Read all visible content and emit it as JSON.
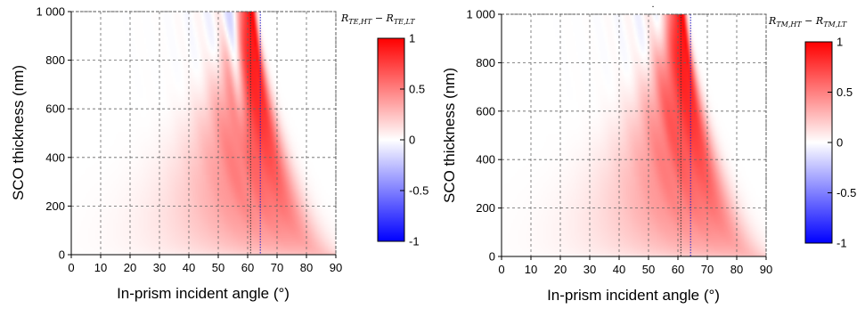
{
  "chart_data": [
    {
      "type": "heatmap",
      "xlabel": "In-prism incident angle (°)",
      "ylabel": "SCO thickness (nm)",
      "xlim": [
        0,
        90
      ],
      "ylim": [
        0,
        1000
      ],
      "xticks": [
        "0",
        "10",
        "20",
        "30",
        "40",
        "50",
        "60",
        "70",
        "80",
        "90"
      ],
      "yticks": [
        "0",
        "200",
        "400",
        "600",
        "800",
        "1 000"
      ],
      "grid": true,
      "colorbar": {
        "label": "R_{TE,HT} − R_{TE,LT}",
        "label_main": "R",
        "label_sub1": "TE,HT",
        "label_mid": " − R",
        "label_sub2": "TE,LT",
        "range": [
          -1,
          1
        ],
        "ticks": [
          "1",
          "0.5",
          "0",
          "-0.5",
          "-1"
        ],
        "colors": [
          "#0000ff",
          "#ffffff",
          "#ff0000"
        ]
      },
      "vertical_lines": [
        {
          "x": 61.0,
          "color": "#333333"
        },
        {
          "x": 64.3,
          "color": "#1a1acc"
        }
      ],
      "features": {
        "resonance_center_at_1000nm": 61.5,
        "resonance_center_at_0nm": 90,
        "negative_band_present": true
      }
    },
    {
      "type": "heatmap",
      "xlabel": "In-prism incident angle (°)",
      "ylabel": "SCO thickness (nm)",
      "xlim": [
        0,
        90
      ],
      "ylim": [
        0,
        1000
      ],
      "xticks": [
        "0",
        "10",
        "20",
        "30",
        "40",
        "50",
        "60",
        "70",
        "80",
        "90"
      ],
      "yticks": [
        "0",
        "200",
        "400",
        "600",
        "800",
        "1 000"
      ],
      "grid": true,
      "colorbar": {
        "label": "R_{TM,HT} − R_{TM,LT}",
        "label_main": "R",
        "label_sub1": "TM,HT",
        "label_mid": " − R",
        "label_sub2": "TM,LT",
        "range": [
          -1,
          1
        ],
        "ticks": [
          "1",
          "0.5",
          "0",
          "-0.5",
          "-1"
        ],
        "colors": [
          "#0000ff",
          "#ffffff",
          "#ff0000"
        ]
      },
      "vertical_lines": [
        {
          "x": 61.0,
          "color": "#333333"
        },
        {
          "x": 64.3,
          "color": "#1a1acc"
        }
      ],
      "features": {
        "resonance_center_at_1000nm": 61.5,
        "resonance_center_at_0nm": 90,
        "negative_band_present": false
      }
    }
  ],
  "stray_mark": "."
}
